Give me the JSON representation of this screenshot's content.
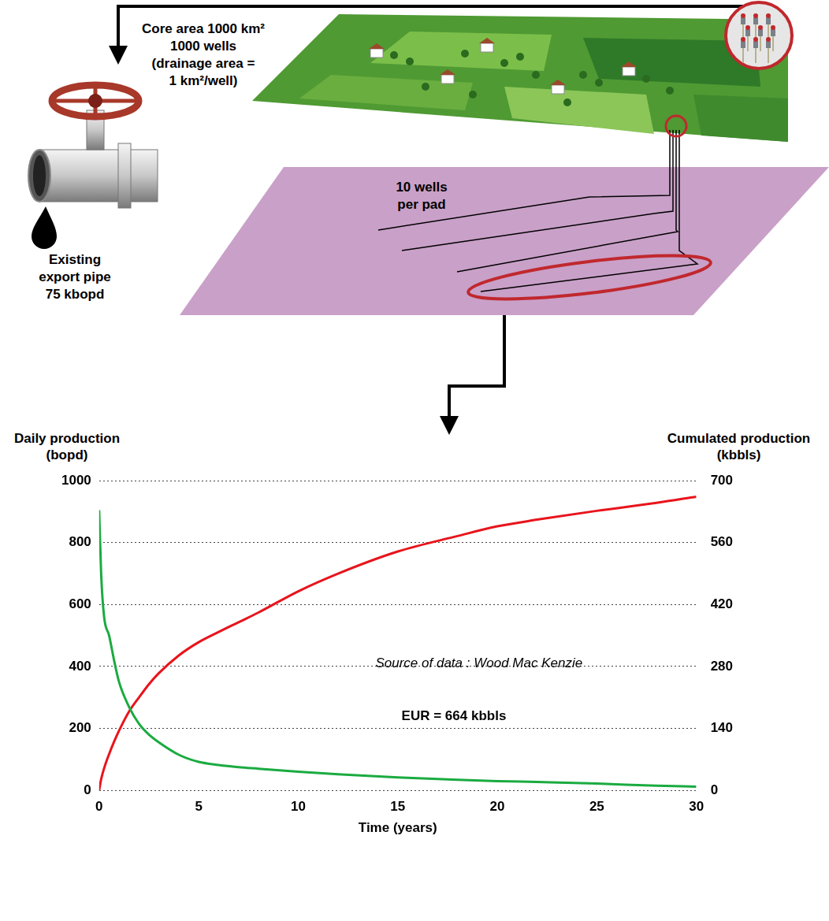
{
  "diagram": {
    "core_area": [
      "Core area 1000 km²",
      "1000 wells",
      "(drainage area =",
      "1 km²/well)"
    ],
    "pad": [
      "10 wells",
      "per pad"
    ],
    "export_pipe": [
      "Existing",
      "export pipe",
      "75 kbopd"
    ]
  },
  "chart_data": {
    "type": "line",
    "x_label": "Time (years)",
    "y_label": "Daily production (bopd)",
    "y2_label": "Cumulated production (kbbls)",
    "annotations": [
      "Source of data : Wood Mac Kenzie",
      "EUR = 664 kbbls"
    ],
    "x": [
      0,
      0.1,
      0.25,
      0.5,
      0.75,
      1,
      1.5,
      2,
      2.5,
      3,
      4,
      5,
      6,
      7,
      8,
      10,
      12,
      15,
      18,
      20,
      22,
      25,
      28,
      30
    ],
    "series": [
      {
        "color": "#1aab40",
        "values": [
          905,
          700,
          560,
          500,
          420,
          350,
          270,
          215,
          180,
          155,
          115,
          92,
          82,
          75,
          70,
          60,
          52,
          42,
          34,
          30,
          27,
          22,
          15,
          12
        ]
      },
      {
        "color": "#e8141c",
        "axis": "y2",
        "values": [
          0,
          25,
          50,
          82,
          110,
          135,
          178,
          210,
          240,
          265,
          305,
          335,
          358,
          380,
          402,
          450,
          490,
          540,
          575,
          597,
          612,
          632,
          650,
          664
        ]
      }
    ],
    "xlim": [
      0,
      30
    ],
    "xticks": [
      0,
      5,
      10,
      15,
      20,
      25,
      30
    ],
    "ylim": [
      0,
      1000
    ],
    "yticks": [
      0,
      200,
      400,
      600,
      800,
      1000
    ],
    "y2lim": [
      0,
      700
    ],
    "y2ticks": [
      0,
      140,
      280,
      420,
      560,
      700
    ],
    "grid": true
  }
}
